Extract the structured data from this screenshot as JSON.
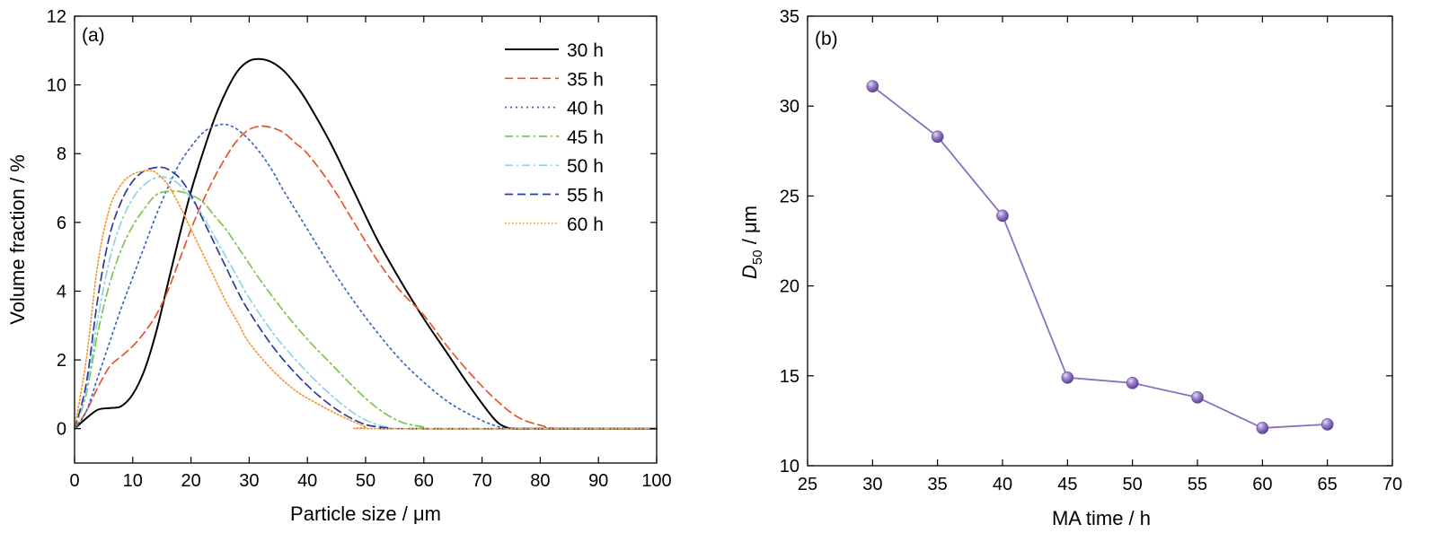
{
  "chart_data": [
    {
      "type": "line",
      "panel_label": "(a)",
      "xlabel": "Particle size / μm",
      "ylabel": "Volume fraction / %",
      "xlim": [
        0,
        100
      ],
      "ylim": [
        -1,
        12
      ],
      "xticks": [
        0,
        10,
        20,
        30,
        40,
        50,
        60,
        70,
        80,
        90,
        100
      ],
      "yticks": [
        0,
        2,
        4,
        6,
        8,
        10,
        12
      ],
      "legend": "top-right",
      "series": [
        {
          "name": "30 h",
          "color": "#000000",
          "dash": "solid",
          "x": [
            0,
            2,
            4,
            6,
            8,
            10,
            12,
            14,
            16,
            18,
            20,
            22,
            24,
            26,
            28,
            30,
            32,
            34,
            36,
            38,
            40,
            44,
            48,
            52,
            56,
            60,
            64,
            68,
            72,
            74,
            76,
            80,
            100
          ],
          "y": [
            0,
            0.3,
            0.55,
            0.6,
            0.65,
            1.0,
            1.7,
            2.8,
            4.2,
            5.6,
            6.9,
            8.0,
            9.0,
            9.8,
            10.4,
            10.7,
            10.75,
            10.65,
            10.4,
            10.0,
            9.5,
            8.3,
            6.9,
            5.5,
            4.3,
            3.2,
            2.2,
            1.2,
            0.3,
            0.05,
            0,
            0,
            0
          ]
        },
        {
          "name": "35 h",
          "color": "#e8542a",
          "dash": "dashed",
          "x": [
            0,
            2,
            4,
            6,
            8,
            10,
            12,
            14,
            16,
            18,
            20,
            22,
            24,
            26,
            28,
            30,
            32,
            34,
            36,
            38,
            40,
            44,
            48,
            52,
            56,
            60,
            64,
            68,
            72,
            76,
            80,
            84,
            100
          ],
          "y": [
            0,
            0.5,
            1.2,
            1.8,
            2.1,
            2.4,
            2.8,
            3.3,
            4.0,
            4.9,
            5.8,
            6.6,
            7.3,
            7.9,
            8.4,
            8.7,
            8.8,
            8.75,
            8.6,
            8.3,
            8.0,
            7.1,
            6.0,
            4.9,
            4.0,
            3.3,
            2.4,
            1.6,
            0.9,
            0.35,
            0.1,
            0,
            0
          ]
        },
        {
          "name": "40 h",
          "color": "#3a67c2",
          "dash": "dotted",
          "x": [
            0,
            2,
            4,
            6,
            8,
            10,
            12,
            14,
            16,
            18,
            20,
            22,
            24,
            26,
            28,
            30,
            32,
            34,
            36,
            40,
            44,
            48,
            52,
            56,
            60,
            64,
            68,
            72,
            75,
            80,
            100
          ],
          "y": [
            0,
            0.5,
            1.5,
            2.5,
            3.5,
            4.4,
            5.3,
            6.2,
            7.0,
            7.7,
            8.2,
            8.6,
            8.8,
            8.85,
            8.7,
            8.4,
            8.0,
            7.5,
            6.9,
            5.8,
            4.7,
            3.7,
            2.8,
            2.0,
            1.35,
            0.8,
            0.4,
            0.1,
            0,
            0,
            0
          ]
        },
        {
          "name": "45 h",
          "color": "#7ec450",
          "dash": "dashdot",
          "x": [
            0,
            2,
            4,
            6,
            8,
            10,
            12,
            14,
            16,
            18,
            20,
            22,
            24,
            26,
            28,
            30,
            32,
            36,
            40,
            44,
            48,
            52,
            56,
            60,
            62,
            100
          ],
          "y": [
            0,
            1.0,
            2.8,
            4.2,
            5.2,
            5.9,
            6.4,
            6.8,
            6.9,
            6.9,
            6.8,
            6.6,
            6.2,
            5.8,
            5.3,
            4.8,
            4.3,
            3.4,
            2.6,
            1.9,
            1.2,
            0.6,
            0.2,
            0.05,
            0,
            0
          ]
        },
        {
          "name": "50 h",
          "color": "#8fd3e8",
          "dash": "dashdot",
          "x": [
            0,
            2,
            4,
            6,
            8,
            10,
            12,
            14,
            16,
            18,
            20,
            22,
            24,
            26,
            28,
            30,
            34,
            38,
            42,
            46,
            50,
            54,
            58,
            100
          ],
          "y": [
            0,
            1.1,
            3.2,
            4.9,
            6.0,
            6.7,
            7.1,
            7.3,
            7.3,
            7.1,
            6.7,
            6.2,
            5.6,
            5.0,
            4.4,
            3.8,
            2.8,
            2.0,
            1.3,
            0.7,
            0.25,
            0.03,
            0,
            0
          ]
        },
        {
          "name": "55 h",
          "color": "#2b3c9c",
          "dash": "dashed",
          "x": [
            0,
            2,
            4,
            6,
            8,
            10,
            12,
            14,
            15,
            16,
            18,
            20,
            22,
            24,
            26,
            28,
            30,
            34,
            38,
            42,
            46,
            50,
            54,
            56,
            100
          ],
          "y": [
            0,
            1.3,
            3.8,
            5.6,
            6.6,
            7.2,
            7.5,
            7.6,
            7.6,
            7.55,
            7.3,
            6.8,
            6.1,
            5.4,
            4.7,
            4.0,
            3.4,
            2.4,
            1.6,
            0.95,
            0.45,
            0.12,
            0.02,
            0,
            0
          ]
        },
        {
          "name": "60 h",
          "color": "#f29a3a",
          "dash": "dotted-fine",
          "x": [
            0,
            2,
            4,
            6,
            8,
            10,
            12,
            13,
            14,
            16,
            18,
            20,
            22,
            24,
            26,
            28,
            30,
            34,
            38,
            42,
            46,
            50,
            52,
            100
          ],
          "y": [
            0,
            2.0,
            4.8,
            6.4,
            7.1,
            7.4,
            7.5,
            7.5,
            7.45,
            7.1,
            6.5,
            5.8,
            5.1,
            4.4,
            3.7,
            3.1,
            2.5,
            1.7,
            1.1,
            0.7,
            0.35,
            0.06,
            0,
            0
          ]
        }
      ]
    },
    {
      "type": "line",
      "panel_label": "(b)",
      "xlabel": "MA time / h",
      "ylabel_main": "D",
      "ylabel_sub": "50",
      "ylabel_unit": " / μm",
      "xlim": [
        25,
        70
      ],
      "ylim": [
        10,
        35
      ],
      "xticks": [
        25,
        30,
        35,
        40,
        45,
        50,
        55,
        60,
        65,
        70
      ],
      "yticks": [
        10,
        15,
        20,
        25,
        30,
        35
      ],
      "color": "#8a6fbf",
      "series": [
        {
          "x": [
            30,
            35,
            40,
            45,
            50,
            55,
            60,
            65
          ],
          "y": [
            31.1,
            28.3,
            23.9,
            14.9,
            14.6,
            13.8,
            12.1,
            12.3
          ]
        }
      ]
    }
  ]
}
